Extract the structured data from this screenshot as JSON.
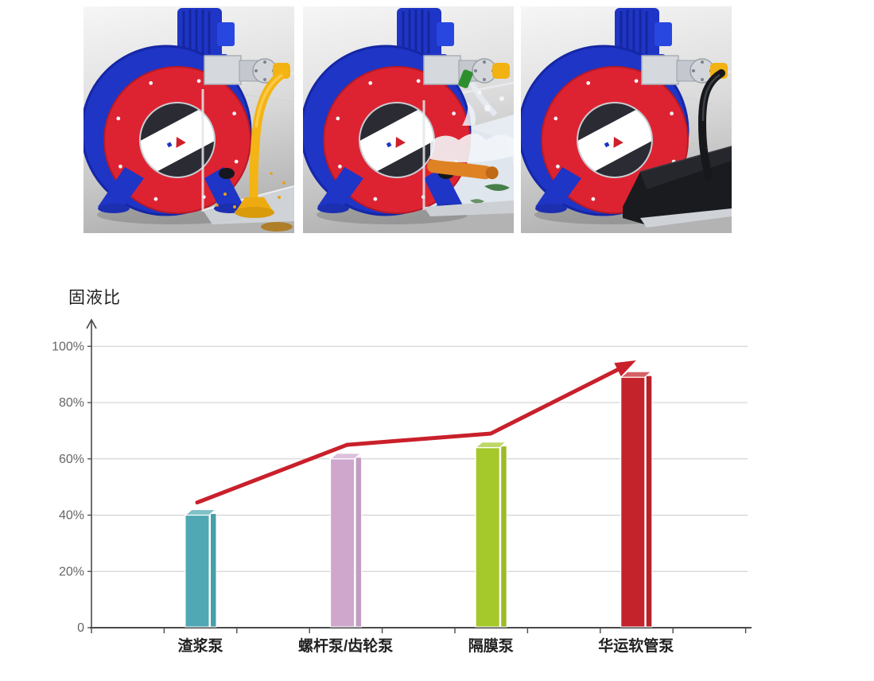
{
  "page": {
    "background": "#ffffff"
  },
  "gallery": {
    "items": [
      {
        "id": "pump-render-suction-hose",
        "variant": "suction",
        "accent_color": "#f3b414"
      },
      {
        "id": "pump-render-water-tank",
        "variant": "water",
        "accent_color": "#e07f1f"
      },
      {
        "id": "pump-render-black-mat",
        "variant": "black",
        "accent_color": "#17181b"
      }
    ],
    "pump_colors": {
      "housing_blue": "#1e35c6",
      "ring_red": "#dd2331",
      "motor_blue": "#1e35c6",
      "silver": "#d5d8dc"
    }
  },
  "chart_data": {
    "type": "bar",
    "title": "",
    "ylabel": "固液比",
    "xlabel": "",
    "categories": [
      "渣浆泵",
      "螺杆泵/齿轮泵",
      "隔膜泵",
      "华运软管泵"
    ],
    "values": [
      40,
      60,
      64,
      89
    ],
    "unit": "%",
    "bar_colors": [
      "#4fa8b3",
      "#cfa7cd",
      "#a5c82b",
      "#c5232b"
    ],
    "ytick_values": [
      0,
      20,
      40,
      60,
      80,
      100
    ],
    "ytick_labels": [
      "0",
      "20%",
      "40%",
      "60%",
      "80%",
      "100%"
    ],
    "ylim": [
      0,
      110
    ],
    "grid": true,
    "grid_color": "#cccccc",
    "axis_color": "#4a4a4a",
    "tick_label_color": "#666666",
    "category_label_color": "#222222",
    "trend_arrow": {
      "color": "#c9202b",
      "points": [
        [
          0,
          44.5
        ],
        [
          1,
          65
        ],
        [
          2,
          69
        ],
        [
          3,
          95
        ]
      ]
    }
  }
}
